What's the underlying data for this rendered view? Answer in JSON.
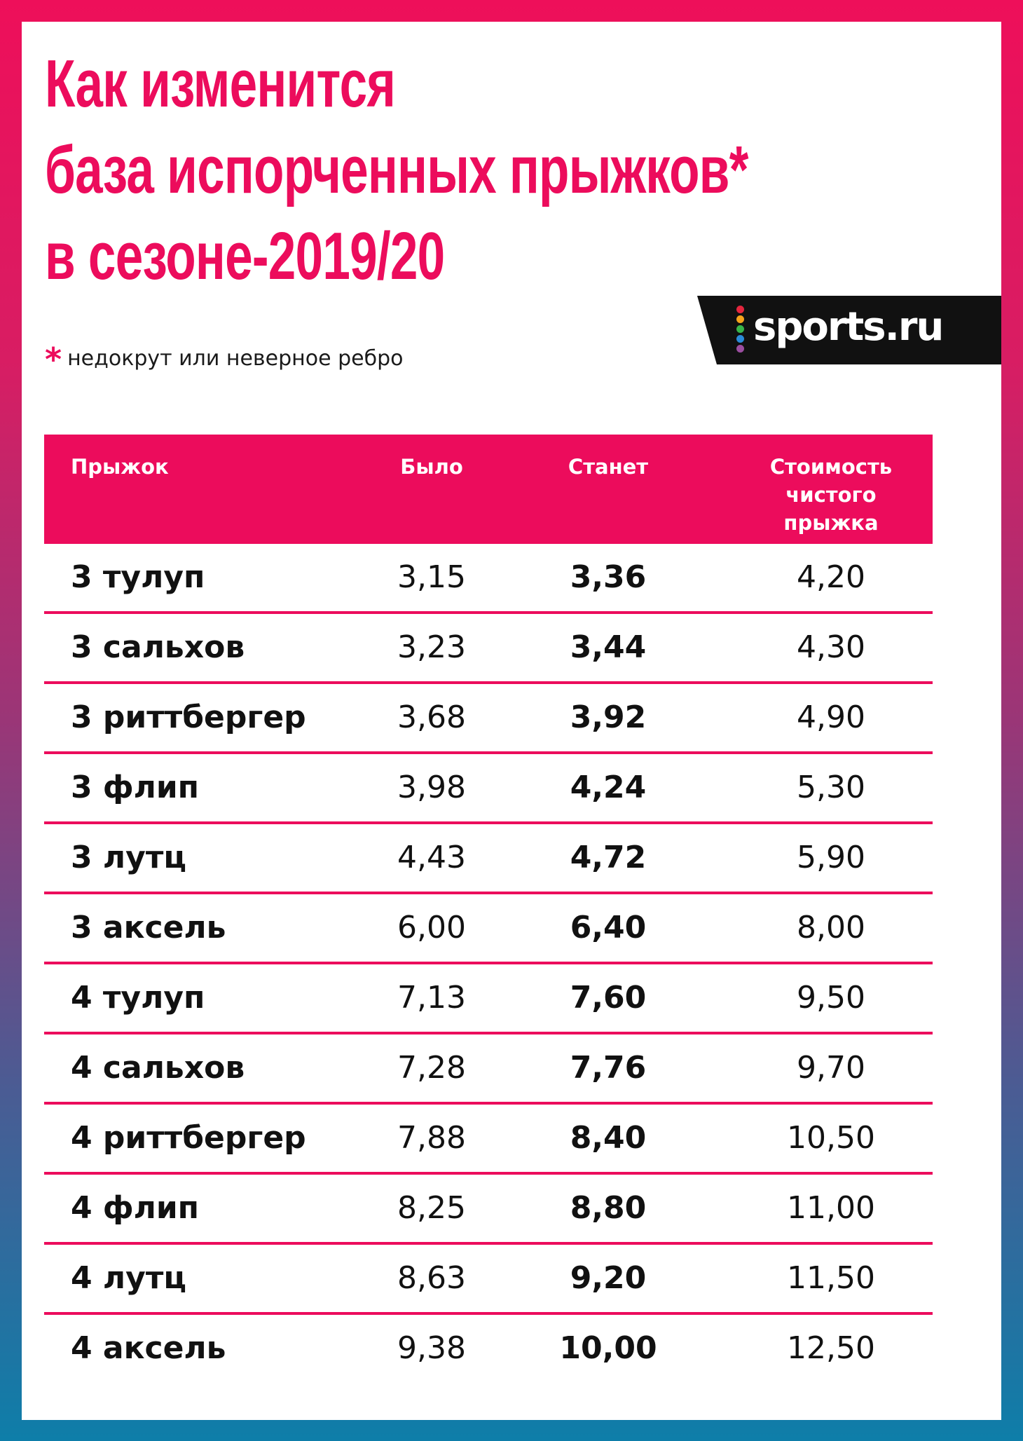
{
  "title_lines": [
    "Как изменится",
    "база испорченных прыжков*",
    "в сезоне-2019/20"
  ],
  "footnote": {
    "mark": "*",
    "text": "недокрут или неверное ребро"
  },
  "logo": {
    "text": "sports.ru",
    "dot_colors": [
      "#e4263e",
      "#f6a31b",
      "#38b449",
      "#2a8ad8",
      "#9b4ea0"
    ]
  },
  "table": {
    "headers": {
      "jump": "Прыжок",
      "was": "Было",
      "will": "Станет",
      "clean": [
        "Стоимость",
        "чистого",
        "прыжка"
      ]
    },
    "rows": [
      {
        "jump": "3 тулуп",
        "was": "3,15",
        "will": "3,36",
        "clean": "4,20"
      },
      {
        "jump": "3 сальхов",
        "was": "3,23",
        "will": "3,44",
        "clean": "4,30"
      },
      {
        "jump": "3 риттбергер",
        "was": "3,68",
        "will": "3,92",
        "clean": "4,90"
      },
      {
        "jump": "3 флип",
        "was": "3,98",
        "will": "4,24",
        "clean": "5,30"
      },
      {
        "jump": "3 лутц",
        "was": "4,43",
        "will": "4,72",
        "clean": "5,90"
      },
      {
        "jump": "3 аксель",
        "was": "6,00",
        "will": "6,40",
        "clean": "8,00"
      },
      {
        "jump": "4 тулуп",
        "was": "7,13",
        "will": "7,60",
        "clean": "9,50"
      },
      {
        "jump": "4 сальхов",
        "was": "7,28",
        "will": "7,76",
        "clean": "9,70"
      },
      {
        "jump": "4 риттбергер",
        "was": "7,88",
        "will": "8,40",
        "clean": "10,50"
      },
      {
        "jump": "4 флип",
        "was": "8,25",
        "will": "8,80",
        "clean": "11,00"
      },
      {
        "jump": "4 лутц",
        "was": "8,63",
        "will": "9,20",
        "clean": "11,50"
      },
      {
        "jump": "4 аксель",
        "was": "9,38",
        "will": "10,00",
        "clean": "12,50"
      }
    ]
  },
  "colors": {
    "accent": "#ec0c5c",
    "text": "#111111",
    "background_top": "#ee0f5a",
    "background_bottom": "#0e7ea9"
  }
}
